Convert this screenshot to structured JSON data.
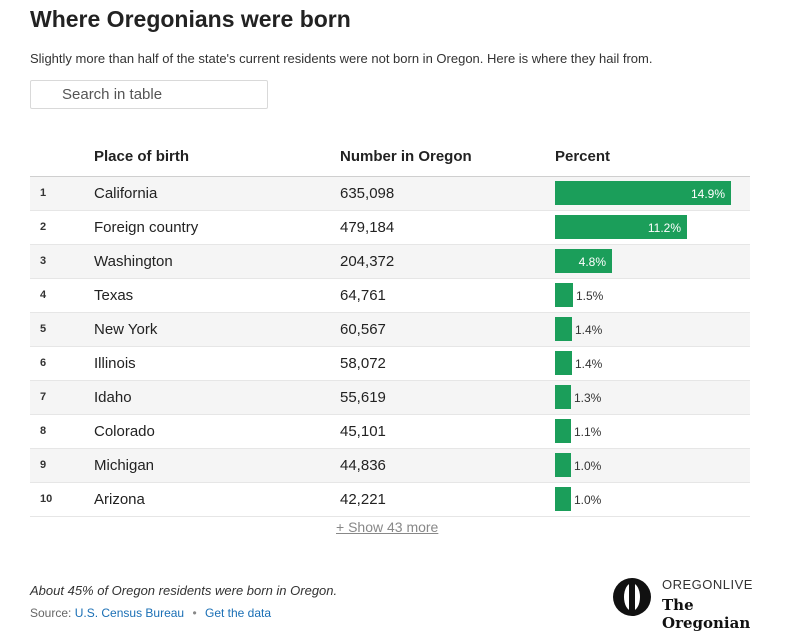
{
  "header": {
    "title": "Where Oregonians were born",
    "subtitle": "Slightly more than half of the state's current residents were not born in Oregon. Here is where they hail from."
  },
  "search": {
    "placeholder": "Search in table",
    "value": ""
  },
  "table": {
    "columns": [
      "Place of birth",
      "Number in Oregon",
      "Percent"
    ],
    "rows": [
      {
        "rank": "1",
        "place": "California",
        "number": "635,098",
        "percent_label": "14.9%",
        "percent": 14.9
      },
      {
        "rank": "2",
        "place": "Foreign country",
        "number": "479,184",
        "percent_label": "11.2%",
        "percent": 11.2
      },
      {
        "rank": "3",
        "place": "Washington",
        "number": "204,372",
        "percent_label": "4.8%",
        "percent": 4.8
      },
      {
        "rank": "4",
        "place": "Texas",
        "number": "64,761",
        "percent_label": "1.5%",
        "percent": 1.5
      },
      {
        "rank": "5",
        "place": "New York",
        "number": "60,567",
        "percent_label": "1.4%",
        "percent": 1.4
      },
      {
        "rank": "6",
        "place": "Illinois",
        "number": "58,072",
        "percent_label": "1.4%",
        "percent": 1.4
      },
      {
        "rank": "7",
        "place": "Idaho",
        "number": "55,619",
        "percent_label": "1.3%",
        "percent": 1.3
      },
      {
        "rank": "8",
        "place": "Colorado",
        "number": "45,101",
        "percent_label": "1.1%",
        "percent": 1.1
      },
      {
        "rank": "9",
        "place": "Michigan",
        "number": "44,836",
        "percent_label": "1.0%",
        "percent": 1.0
      },
      {
        "rank": "10",
        "place": "Arizona",
        "number": "42,221",
        "percent_label": "1.0%",
        "percent": 1.0
      }
    ],
    "show_more_label": "+ Show 43 more"
  },
  "footer": {
    "note": "About 45% of Oregon residents were born in Oregon.",
    "source_prefix": "Source:",
    "source_link": "U.S. Census Bureau",
    "separator": "•",
    "data_link": "Get the data"
  },
  "logo": {
    "top": "OREGONLIVE",
    "bottom": "The Oregonian",
    "mark_icon": "oregonian-o-logo-icon"
  },
  "colors": {
    "bar": "#1b9e5a",
    "link": "#1a6fb5",
    "stripe": "#f5f5f5"
  }
}
